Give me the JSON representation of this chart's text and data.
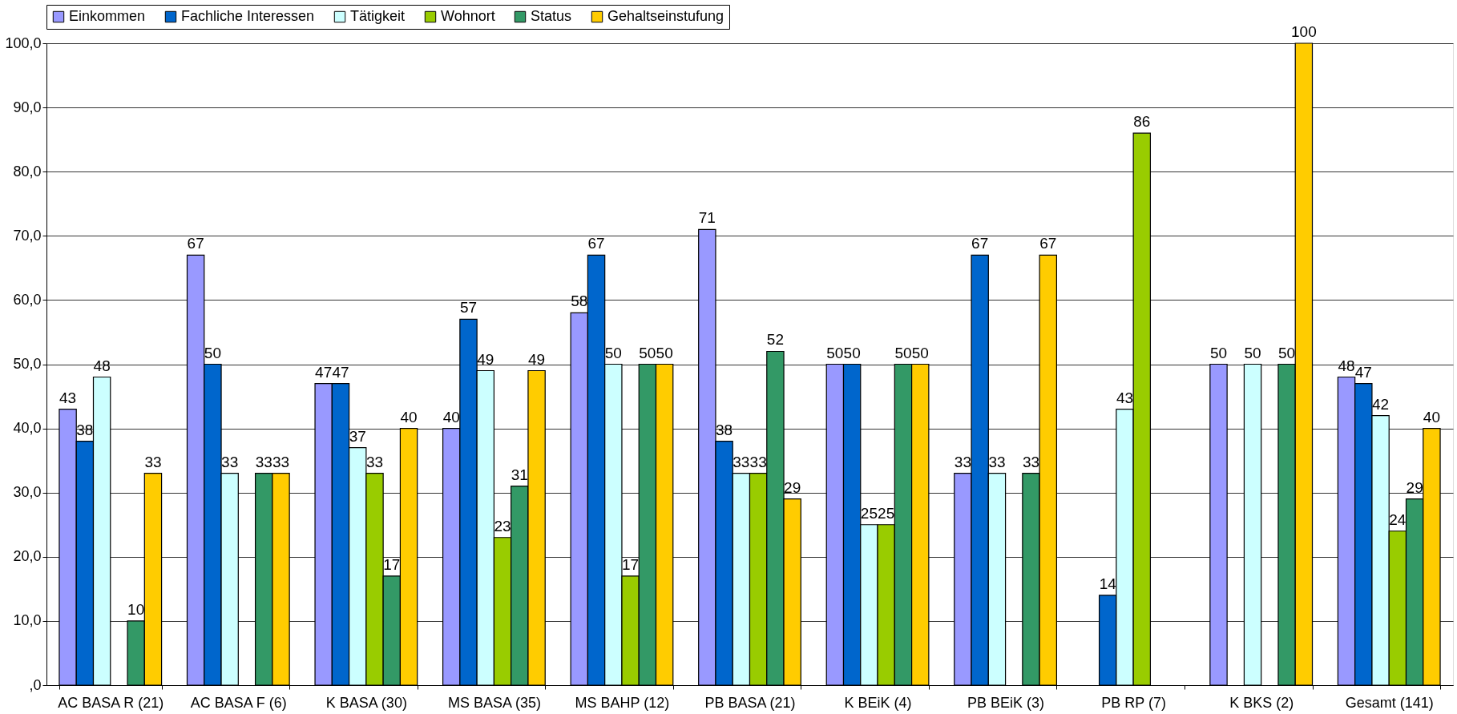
{
  "chart_data": {
    "type": "bar",
    "categories": [
      "AC BASA R (21)",
      "AC BASA F (6)",
      "K BASA (30)",
      "MS BASA (35)",
      "MS BAHP (12)",
      "PB BASA (21)",
      "K BEiK (4)",
      "PB BEiK (3)",
      "PB RP (7)",
      "K BKS (2)",
      "Gesamt (141)"
    ],
    "series": [
      {
        "name": "Einkommen",
        "color": "#9999ff",
        "values": [
          43,
          67,
          47,
          40,
          58,
          71,
          50,
          33,
          null,
          50,
          48
        ]
      },
      {
        "name": "Fachliche Interessen",
        "color": "#0066cc",
        "values": [
          38,
          50,
          47,
          57,
          67,
          38,
          50,
          67,
          14,
          null,
          47
        ]
      },
      {
        "name": "Tätigkeit",
        "color": "#ccffff",
        "values": [
          48,
          33,
          37,
          49,
          50,
          33,
          25,
          33,
          43,
          50,
          42
        ]
      },
      {
        "name": "Wohnort",
        "color": "#99cc00",
        "values": [
          null,
          null,
          33,
          23,
          17,
          33,
          25,
          null,
          86,
          null,
          24
        ]
      },
      {
        "name": "Status",
        "color": "#339966",
        "values": [
          10,
          33,
          17,
          31,
          50,
          52,
          50,
          33,
          null,
          50,
          29
        ]
      },
      {
        "name": "Gehaltseinstufung",
        "color": "#ffcc00",
        "values": [
          33,
          33,
          40,
          49,
          50,
          29,
          50,
          67,
          null,
          100,
          40
        ]
      }
    ],
    "ylim": [
      0,
      100
    ],
    "yticks": [
      {
        "value": 0,
        "label": ",0"
      },
      {
        "value": 10,
        "label": "10,0"
      },
      {
        "value": 20,
        "label": "20,0"
      },
      {
        "value": 30,
        "label": "30,0"
      },
      {
        "value": 40,
        "label": "40,0"
      },
      {
        "value": 50,
        "label": "50,0"
      },
      {
        "value": 60,
        "label": "60,0"
      },
      {
        "value": 70,
        "label": "70,0"
      },
      {
        "value": 80,
        "label": "80,0"
      },
      {
        "value": 90,
        "label": "90,0"
      },
      {
        "value": 100,
        "label": "100,0"
      }
    ],
    "grid": "y",
    "legend": "top",
    "data_labels": true
  }
}
